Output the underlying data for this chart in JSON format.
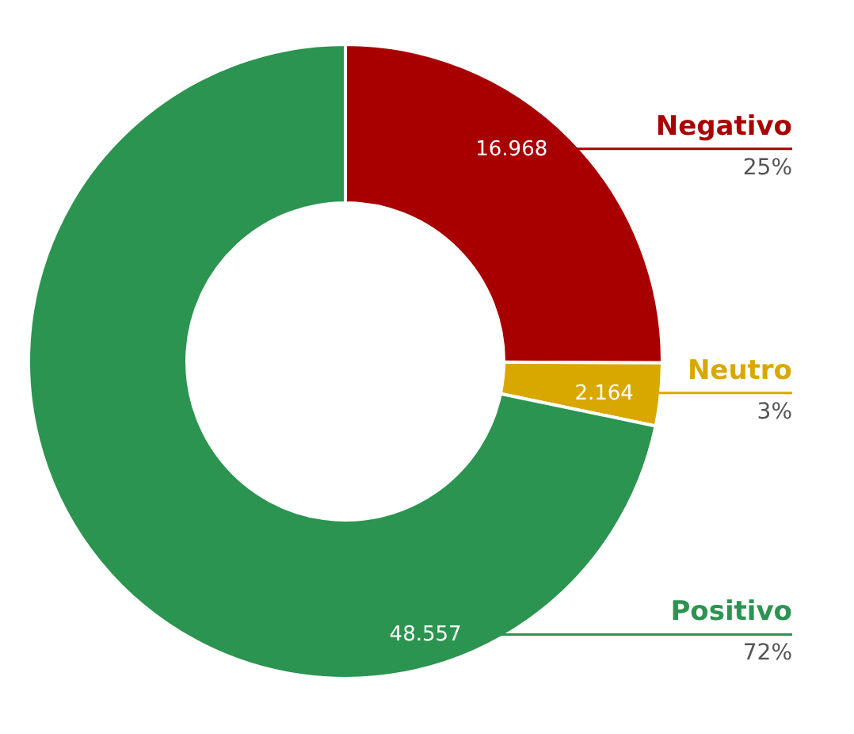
{
  "chart_data": {
    "type": "donut",
    "categories": [
      "Negativo",
      "Neutro",
      "Positivo"
    ],
    "values": [
      16968,
      2164,
      48557
    ],
    "value_labels": [
      "16.968",
      "2.164",
      "48.557"
    ],
    "colors": [
      "#a80000",
      "#d9a800",
      "#2b9450"
    ],
    "annotations": [
      "25%",
      "3%",
      "72%"
    ]
  }
}
